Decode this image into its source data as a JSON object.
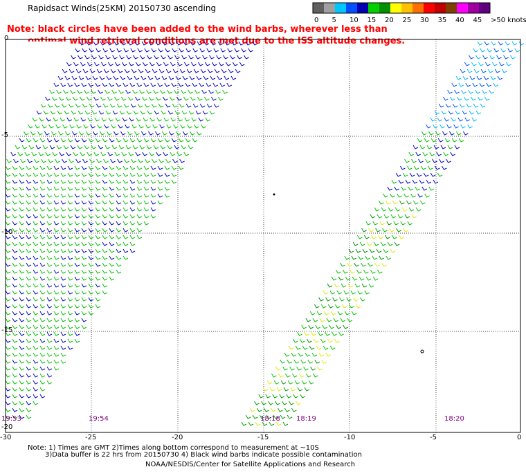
{
  "title": "Rapidsact Winds(25KM) 20150730 ascending",
  "legend": {
    "colors": [
      "#606060",
      "#a0a0a0",
      "#00c8ff",
      "#0050ff",
      "#0000b0",
      "#00d000",
      "#009000",
      "#ffff00",
      "#ffc000",
      "#ff7000",
      "#ff0000",
      "#c00000",
      "#804000",
      "#ff00ff",
      "#a000a0",
      "#600080"
    ],
    "labels": [
      "0",
      "5",
      "10",
      "15",
      "20",
      "25",
      "30",
      "35",
      "40",
      "45",
      ">50 knots"
    ],
    "unit": "knots"
  },
  "note": {
    "line1": "Note: black circles have been added to the wind barbs, wherever less than",
    "line2": "optimal wind retrieval conditions are met due to the ISS altitude changes."
  },
  "axes": {
    "y_ticks": [
      "0",
      "-5",
      "-10",
      "-15",
      "-20"
    ],
    "x_ticks": [
      "-30",
      "-25",
      "-20",
      "-15",
      "-10",
      "-5",
      "0"
    ]
  },
  "times": [
    "19:53",
    "19:54",
    "18:18",
    "18:19",
    "18:20"
  ],
  "footer": {
    "line1": "Note: 1) Times are GMT 2)Times along bottom correspond to measurement at ~10S",
    "line2": "3)Data buffer is 22 hrs from 20150730 4) Black wind barbs indicate possible contamination",
    "line3": "NOAA/NESDIS/Center for Satellite Applications and Research"
  }
}
